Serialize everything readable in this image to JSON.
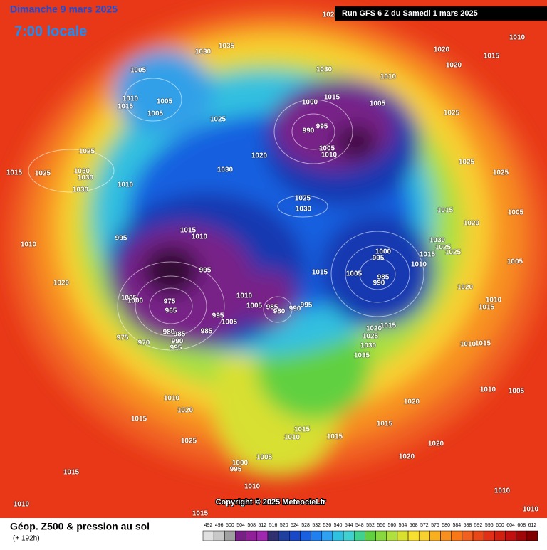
{
  "header": {
    "date": "Dimanche 9 mars 2025",
    "time": "7:00 locale",
    "run": "Run GFS 6 Z du Samedi 1 mars 2025"
  },
  "map": {
    "pressure_labels": [
      "1030",
      "1035",
      "1030",
      "1010",
      "1015",
      "1000",
      "1005",
      "995",
      "990",
      "1005",
      "1010",
      "1020",
      "1015",
      "1010",
      "1020",
      "1025",
      "1025",
      "1025",
      "1015",
      "1020",
      "1005",
      "1030",
      "1025",
      "1025",
      "1015",
      "1010",
      "1005",
      "1000",
      "995",
      "985",
      "990",
      "1005",
      "1015",
      "1020",
      "1010",
      "1015",
      "1020",
      "1025",
      "1030",
      "1035",
      "1015",
      "1015",
      "1010",
      "1015",
      "1020",
      "1020",
      "1020",
      "1010",
      "1005",
      "1010",
      "1010",
      "1015",
      "1015",
      "1010",
      "1005",
      "1000",
      "995",
      "1010",
      "1015",
      "1015",
      "1010",
      "1015",
      "1010",
      "1020",
      "1025",
      "1005",
      "1010",
      "1015",
      "1005",
      "1005",
      "1025",
      "1020",
      "1030",
      "1025",
      "1030",
      "1025",
      "1025",
      "1015",
      "1030",
      "1030",
      "1030",
      "1010",
      "995",
      "1010",
      "1020",
      "1015",
      "1010",
      "995",
      "1010",
      "1005",
      "1000",
      "975",
      "965",
      "985",
      "980",
      "995",
      "990",
      "1005",
      "995",
      "1005",
      "985",
      "980",
      "985",
      "990",
      "995",
      "975",
      "970",
      "102"
    ]
  },
  "footer": {
    "title": "Géop. Z500 & pression au sol",
    "lead": "(+ 192h)",
    "copyright": "Copyright © 2025 Meteociel.fr"
  },
  "legend": {
    "values": [
      492,
      496,
      500,
      504,
      508,
      512,
      516,
      520,
      524,
      528,
      532,
      536,
      540,
      544,
      548,
      552,
      556,
      560,
      564,
      568,
      572,
      576,
      580,
      584,
      588,
      592,
      596,
      600,
      604,
      608,
      612
    ]
  }
}
